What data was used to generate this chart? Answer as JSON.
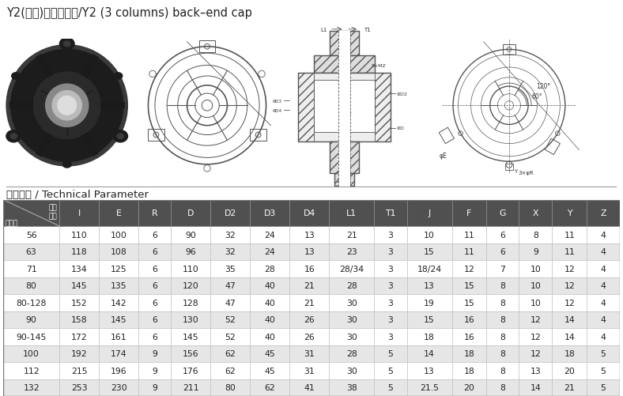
{
  "title": "Y2(三柱)系列后端盖/Y2 (3 columns) back–end cap",
  "section_label": "技术参数 / Technical Parameter",
  "col0_label_top": "代号",
  "col0_label_mid": "尺寸",
  "col0_label_left": "机座号",
  "columns": [
    "I",
    "E",
    "R",
    "D",
    "D2",
    "D3",
    "D4",
    "L1",
    "T1",
    "J",
    "F",
    "G",
    "X",
    "Y",
    "Z"
  ],
  "rows": [
    [
      "56",
      "110",
      "100",
      "6",
      "90",
      "32",
      "24",
      "13",
      "21",
      "3",
      "10",
      "11",
      "6",
      "8",
      "11",
      "4"
    ],
    [
      "63",
      "118",
      "108",
      "6",
      "96",
      "32",
      "24",
      "13",
      "23",
      "3",
      "15",
      "11",
      "6",
      "9",
      "11",
      "4"
    ],
    [
      "71",
      "134",
      "125",
      "6",
      "110",
      "35",
      "28",
      "16",
      "28/34",
      "3",
      "18/24",
      "12",
      "7",
      "10",
      "12",
      "4"
    ],
    [
      "80",
      "145",
      "135",
      "6",
      "120",
      "47",
      "40",
      "21",
      "28",
      "3",
      "13",
      "15",
      "8",
      "10",
      "12",
      "4"
    ],
    [
      "80-128",
      "152",
      "142",
      "6",
      "128",
      "47",
      "40",
      "21",
      "30",
      "3",
      "19",
      "15",
      "8",
      "10",
      "12",
      "4"
    ],
    [
      "90",
      "158",
      "145",
      "6",
      "130",
      "52",
      "40",
      "26",
      "30",
      "3",
      "15",
      "16",
      "8",
      "12",
      "14",
      "4"
    ],
    [
      "90-145",
      "172",
      "161",
      "6",
      "145",
      "52",
      "40",
      "26",
      "30",
      "3",
      "18",
      "16",
      "8",
      "12",
      "14",
      "4"
    ],
    [
      "100",
      "192",
      "174",
      "9",
      "156",
      "62",
      "45",
      "31",
      "28",
      "5",
      "14",
      "18",
      "8",
      "12",
      "18",
      "5"
    ],
    [
      "112",
      "215",
      "196",
      "9",
      "176",
      "62",
      "45",
      "31",
      "30",
      "5",
      "13",
      "18",
      "8",
      "13",
      "20",
      "5"
    ],
    [
      "132",
      "253",
      "230",
      "9",
      "211",
      "80",
      "62",
      "41",
      "38",
      "5",
      "21.5",
      "20",
      "8",
      "14",
      "21",
      "5"
    ]
  ],
  "row_colors": [
    "#ffffff",
    "#e6e6e6",
    "#ffffff",
    "#e6e6e6",
    "#ffffff",
    "#e6e6e6",
    "#ffffff",
    "#e6e6e6",
    "#ffffff",
    "#e6e6e6"
  ],
  "header_bg": "#505050",
  "header_fg": "#ffffff",
  "bg_color": "#ffffff",
  "line_color": "#555555",
  "text_color": "#222222",
  "title_fontsize": 10.5,
  "table_fontsize": 7.8,
  "section_fontsize": 9.5
}
